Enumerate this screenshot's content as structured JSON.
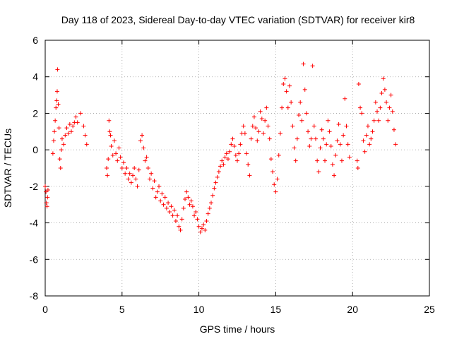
{
  "chart_data": {
    "type": "scatter",
    "title": "Day 118 of 2023, Sidereal Day-to-day VTEC variation (SDTVAR) for receiver kir8",
    "xlabel": "GPS time / hours",
    "ylabel": "SDTVAR / TECUs",
    "xlim": [
      0,
      25
    ],
    "ylim": [
      -8,
      6
    ],
    "xticks": [
      0,
      5,
      10,
      15,
      20,
      25
    ],
    "yticks": [
      -8,
      -6,
      -4,
      -2,
      0,
      2,
      4,
      6
    ],
    "x_tick_labels": [
      "0",
      "5",
      "10",
      "15",
      "20",
      "25"
    ],
    "y_tick_labels": [
      "-8",
      "-6",
      "-4",
      "-2",
      "0",
      "2",
      "4",
      "6"
    ],
    "grid": true,
    "marker": "+",
    "color": "#ff0000",
    "series": [
      {
        "name": "SDTVAR",
        "points": [
          [
            0.0,
            -2.0
          ],
          [
            0.05,
            -2.3
          ],
          [
            0.08,
            -2.9
          ],
          [
            0.12,
            -3.1
          ],
          [
            0.15,
            -2.6
          ],
          [
            0.18,
            -2.2
          ],
          [
            0.5,
            -0.2
          ],
          [
            0.55,
            0.5
          ],
          [
            0.6,
            1.0
          ],
          [
            0.65,
            1.6
          ],
          [
            0.7,
            2.3
          ],
          [
            0.75,
            2.7
          ],
          [
            0.78,
            3.2
          ],
          [
            0.8,
            4.4
          ],
          [
            0.85,
            2.5
          ],
          [
            0.9,
            1.2
          ],
          [
            0.95,
            -0.5
          ],
          [
            1.0,
            -1.0
          ],
          [
            1.05,
            0.0
          ],
          [
            1.1,
            0.6
          ],
          [
            1.2,
            0.3
          ],
          [
            1.3,
            0.8
          ],
          [
            1.4,
            1.2
          ],
          [
            1.5,
            0.9
          ],
          [
            1.6,
            1.4
          ],
          [
            1.7,
            1.0
          ],
          [
            1.8,
            1.3
          ],
          [
            1.9,
            1.5
          ],
          [
            2.0,
            1.8
          ],
          [
            2.1,
            1.5
          ],
          [
            2.3,
            2.0
          ],
          [
            2.5,
            1.3
          ],
          [
            2.6,
            0.8
          ],
          [
            2.7,
            0.3
          ],
          [
            4.0,
            -1.0
          ],
          [
            4.05,
            -1.4
          ],
          [
            4.1,
            -0.5
          ],
          [
            4.15,
            1.6
          ],
          [
            4.2,
            1.0
          ],
          [
            4.25,
            0.8
          ],
          [
            4.3,
            0.2
          ],
          [
            4.4,
            -0.3
          ],
          [
            4.5,
            0.5
          ],
          [
            4.6,
            -0.2
          ],
          [
            4.7,
            -0.6
          ],
          [
            4.8,
            0.1
          ],
          [
            4.9,
            -0.4
          ],
          [
            5.0,
            -1.0
          ],
          [
            5.1,
            -0.7
          ],
          [
            5.2,
            -1.3
          ],
          [
            5.3,
            -1.0
          ],
          [
            5.4,
            -1.6
          ],
          [
            5.5,
            -1.3
          ],
          [
            5.6,
            -1.8
          ],
          [
            5.7,
            -1.4
          ],
          [
            5.8,
            -1.0
          ],
          [
            5.9,
            -1.6
          ],
          [
            6.0,
            -2.0
          ],
          [
            6.1,
            -1.1
          ],
          [
            6.2,
            0.5
          ],
          [
            6.3,
            0.8
          ],
          [
            6.4,
            0.1
          ],
          [
            6.5,
            -0.6
          ],
          [
            6.6,
            -0.4
          ],
          [
            6.7,
            -1.0
          ],
          [
            6.8,
            -1.6
          ],
          [
            6.9,
            -1.3
          ],
          [
            7.0,
            -2.1
          ],
          [
            7.1,
            -1.7
          ],
          [
            7.2,
            -2.6
          ],
          [
            7.3,
            -2.3
          ],
          [
            7.4,
            -2.0
          ],
          [
            7.5,
            -2.8
          ],
          [
            7.6,
            -2.4
          ],
          [
            7.7,
            -3.0
          ],
          [
            7.8,
            -2.6
          ],
          [
            7.9,
            -3.2
          ],
          [
            8.0,
            -2.9
          ],
          [
            8.1,
            -3.4
          ],
          [
            8.2,
            -3.1
          ],
          [
            8.3,
            -3.6
          ],
          [
            8.4,
            -3.3
          ],
          [
            8.5,
            -3.9
          ],
          [
            8.6,
            -3.6
          ],
          [
            8.7,
            -4.2
          ],
          [
            8.8,
            -4.4
          ],
          [
            8.9,
            -3.8
          ],
          [
            9.0,
            -3.2
          ],
          [
            9.1,
            -2.7
          ],
          [
            9.2,
            -2.3
          ],
          [
            9.3,
            -2.6
          ],
          [
            9.4,
            -3.0
          ],
          [
            9.5,
            -2.8
          ],
          [
            9.6,
            -3.1
          ],
          [
            9.7,
            -3.6
          ],
          [
            9.8,
            -3.4
          ],
          [
            9.9,
            -3.8
          ],
          [
            10.0,
            -4.2
          ],
          [
            10.1,
            -4.5
          ],
          [
            10.2,
            -4.3
          ],
          [
            10.3,
            -4.1
          ],
          [
            10.4,
            -4.4
          ],
          [
            10.5,
            -3.9
          ],
          [
            10.6,
            -3.5
          ],
          [
            10.7,
            -3.2
          ],
          [
            10.8,
            -2.9
          ],
          [
            10.9,
            -2.5
          ],
          [
            11.0,
            -2.1
          ],
          [
            11.1,
            -1.8
          ],
          [
            11.2,
            -1.5
          ],
          [
            11.3,
            -1.2
          ],
          [
            11.4,
            -0.9
          ],
          [
            11.5,
            -0.6
          ],
          [
            11.6,
            -0.8
          ],
          [
            11.7,
            -0.4
          ],
          [
            11.8,
            -0.2
          ],
          [
            11.9,
            -0.5
          ],
          [
            12.0,
            -0.1
          ],
          [
            12.1,
            0.3
          ],
          [
            12.2,
            0.6
          ],
          [
            12.3,
            0.2
          ],
          [
            12.4,
            -0.3
          ],
          [
            12.5,
            -0.6
          ],
          [
            12.6,
            -0.2
          ],
          [
            12.7,
            0.3
          ],
          [
            12.8,
            0.9
          ],
          [
            12.9,
            1.3
          ],
          [
            13.0,
            0.9
          ],
          [
            13.1,
            -0.2
          ],
          [
            13.2,
            -0.8
          ],
          [
            13.3,
            -1.4
          ],
          [
            13.4,
            0.6
          ],
          [
            13.5,
            1.3
          ],
          [
            13.6,
            1.8
          ],
          [
            13.7,
            1.2
          ],
          [
            13.8,
            0.5
          ],
          [
            13.9,
            1.0
          ],
          [
            14.0,
            2.1
          ],
          [
            14.1,
            1.7
          ],
          [
            14.2,
            0.9
          ],
          [
            14.3,
            1.6
          ],
          [
            14.4,
            2.3
          ],
          [
            14.5,
            1.3
          ],
          [
            14.6,
            0.6
          ],
          [
            14.7,
            -0.5
          ],
          [
            14.8,
            -1.2
          ],
          [
            14.9,
            -1.9
          ],
          [
            15.0,
            -2.3
          ],
          [
            15.1,
            -1.6
          ],
          [
            15.2,
            -0.3
          ],
          [
            15.3,
            0.9
          ],
          [
            15.4,
            2.3
          ],
          [
            15.5,
            3.6
          ],
          [
            15.6,
            3.9
          ],
          [
            15.7,
            3.2
          ],
          [
            15.8,
            2.3
          ],
          [
            15.9,
            3.5
          ],
          [
            16.0,
            2.6
          ],
          [
            16.1,
            1.3
          ],
          [
            16.2,
            0.1
          ],
          [
            16.3,
            -0.6
          ],
          [
            16.4,
            0.6
          ],
          [
            16.5,
            1.9
          ],
          [
            16.6,
            2.6
          ],
          [
            16.7,
            1.6
          ],
          [
            16.8,
            4.7
          ],
          [
            16.9,
            3.3
          ],
          [
            17.0,
            2.0
          ],
          [
            17.1,
            1.0
          ],
          [
            17.2,
            0.2
          ],
          [
            17.3,
            0.6
          ],
          [
            17.4,
            4.6
          ],
          [
            17.5,
            1.3
          ],
          [
            17.6,
            0.6
          ],
          [
            17.7,
            -0.6
          ],
          [
            17.8,
            -1.2
          ],
          [
            17.9,
            0.1
          ],
          [
            18.0,
            1.1
          ],
          [
            18.1,
            0.6
          ],
          [
            18.2,
            -0.6
          ],
          [
            18.3,
            0.3
          ],
          [
            18.4,
            1.6
          ],
          [
            18.5,
            1.0
          ],
          [
            18.6,
            0.2
          ],
          [
            18.7,
            -0.8
          ],
          [
            18.8,
            -1.4
          ],
          [
            18.9,
            -0.3
          ],
          [
            19.0,
            0.5
          ],
          [
            19.1,
            1.4
          ],
          [
            19.2,
            0.3
          ],
          [
            19.3,
            -0.6
          ],
          [
            19.4,
            0.8
          ],
          [
            19.5,
            2.8
          ],
          [
            19.6,
            1.3
          ],
          [
            19.7,
            0.3
          ],
          [
            19.8,
            -0.4
          ],
          [
            20.3,
            -0.6
          ],
          [
            20.35,
            -1.0
          ],
          [
            20.4,
            3.6
          ],
          [
            20.5,
            2.3
          ],
          [
            20.6,
            2.0
          ],
          [
            20.7,
            0.5
          ],
          [
            20.8,
            -0.1
          ],
          [
            20.9,
            0.8
          ],
          [
            21.0,
            1.3
          ],
          [
            21.1,
            0.3
          ],
          [
            21.2,
            0.6
          ],
          [
            21.3,
            1.0
          ],
          [
            21.4,
            1.6
          ],
          [
            21.5,
            2.6
          ],
          [
            21.6,
            2.1
          ],
          [
            21.7,
            1.6
          ],
          [
            21.8,
            2.3
          ],
          [
            21.9,
            3.1
          ],
          [
            22.0,
            3.9
          ],
          [
            22.1,
            3.3
          ],
          [
            22.2,
            2.6
          ],
          [
            22.3,
            1.6
          ],
          [
            22.4,
            2.3
          ],
          [
            22.5,
            3.0
          ],
          [
            22.6,
            2.1
          ],
          [
            22.7,
            1.1
          ],
          [
            22.8,
            0.3
          ]
        ]
      }
    ]
  }
}
